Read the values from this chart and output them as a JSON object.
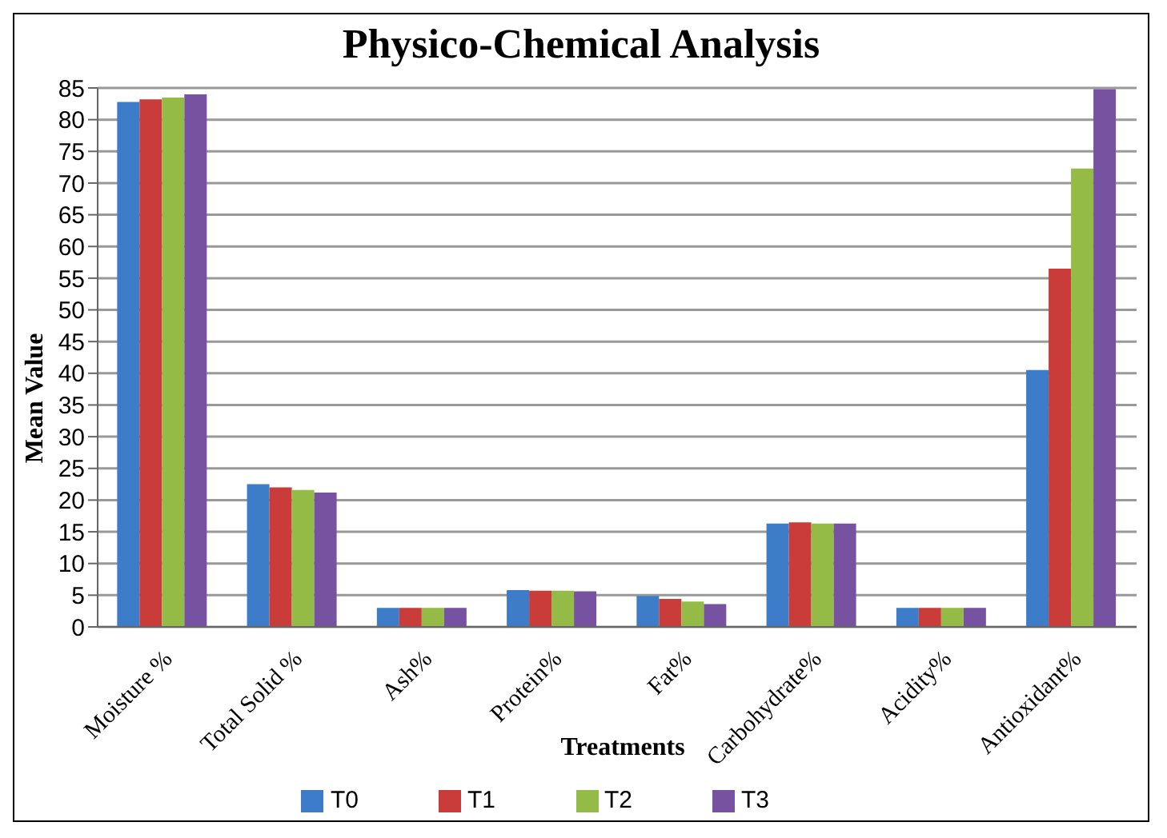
{
  "chart_data": {
    "type": "bar",
    "title": "Physico-Chemical Analysis",
    "xlabel": "Treatments",
    "ylabel": "Mean Value",
    "categories": [
      "Moisture %",
      "Total Solid %",
      "Ash%",
      "Protein%",
      "Fat%",
      "Carbohydrate%",
      "Acidity%",
      "Antioxidant%"
    ],
    "series": [
      {
        "name": "T0",
        "color": "#3d7cc9",
        "values": [
          82.8,
          22.5,
          3,
          5.8,
          4.9,
          16.3,
          3,
          40.5
        ]
      },
      {
        "name": "T1",
        "color": "#c93c3a",
        "values": [
          83.2,
          22,
          3,
          5.7,
          4.4,
          16.5,
          3,
          56.5
        ]
      },
      {
        "name": "T2",
        "color": "#93bb46",
        "values": [
          83.5,
          21.6,
          3,
          5.7,
          4,
          16.3,
          3,
          72.3
        ]
      },
      {
        "name": "T3",
        "color": "#7652a0",
        "values": [
          84,
          21.2,
          3,
          5.6,
          3.6,
          16.3,
          3,
          84.8
        ]
      }
    ],
    "ylim": [
      0,
      85
    ],
    "yticks": [
      0,
      5,
      10,
      15,
      20,
      25,
      30,
      35,
      40,
      45,
      50,
      55,
      60,
      65,
      70,
      75,
      80,
      85
    ],
    "grid": "y",
    "legend": "bottom"
  }
}
